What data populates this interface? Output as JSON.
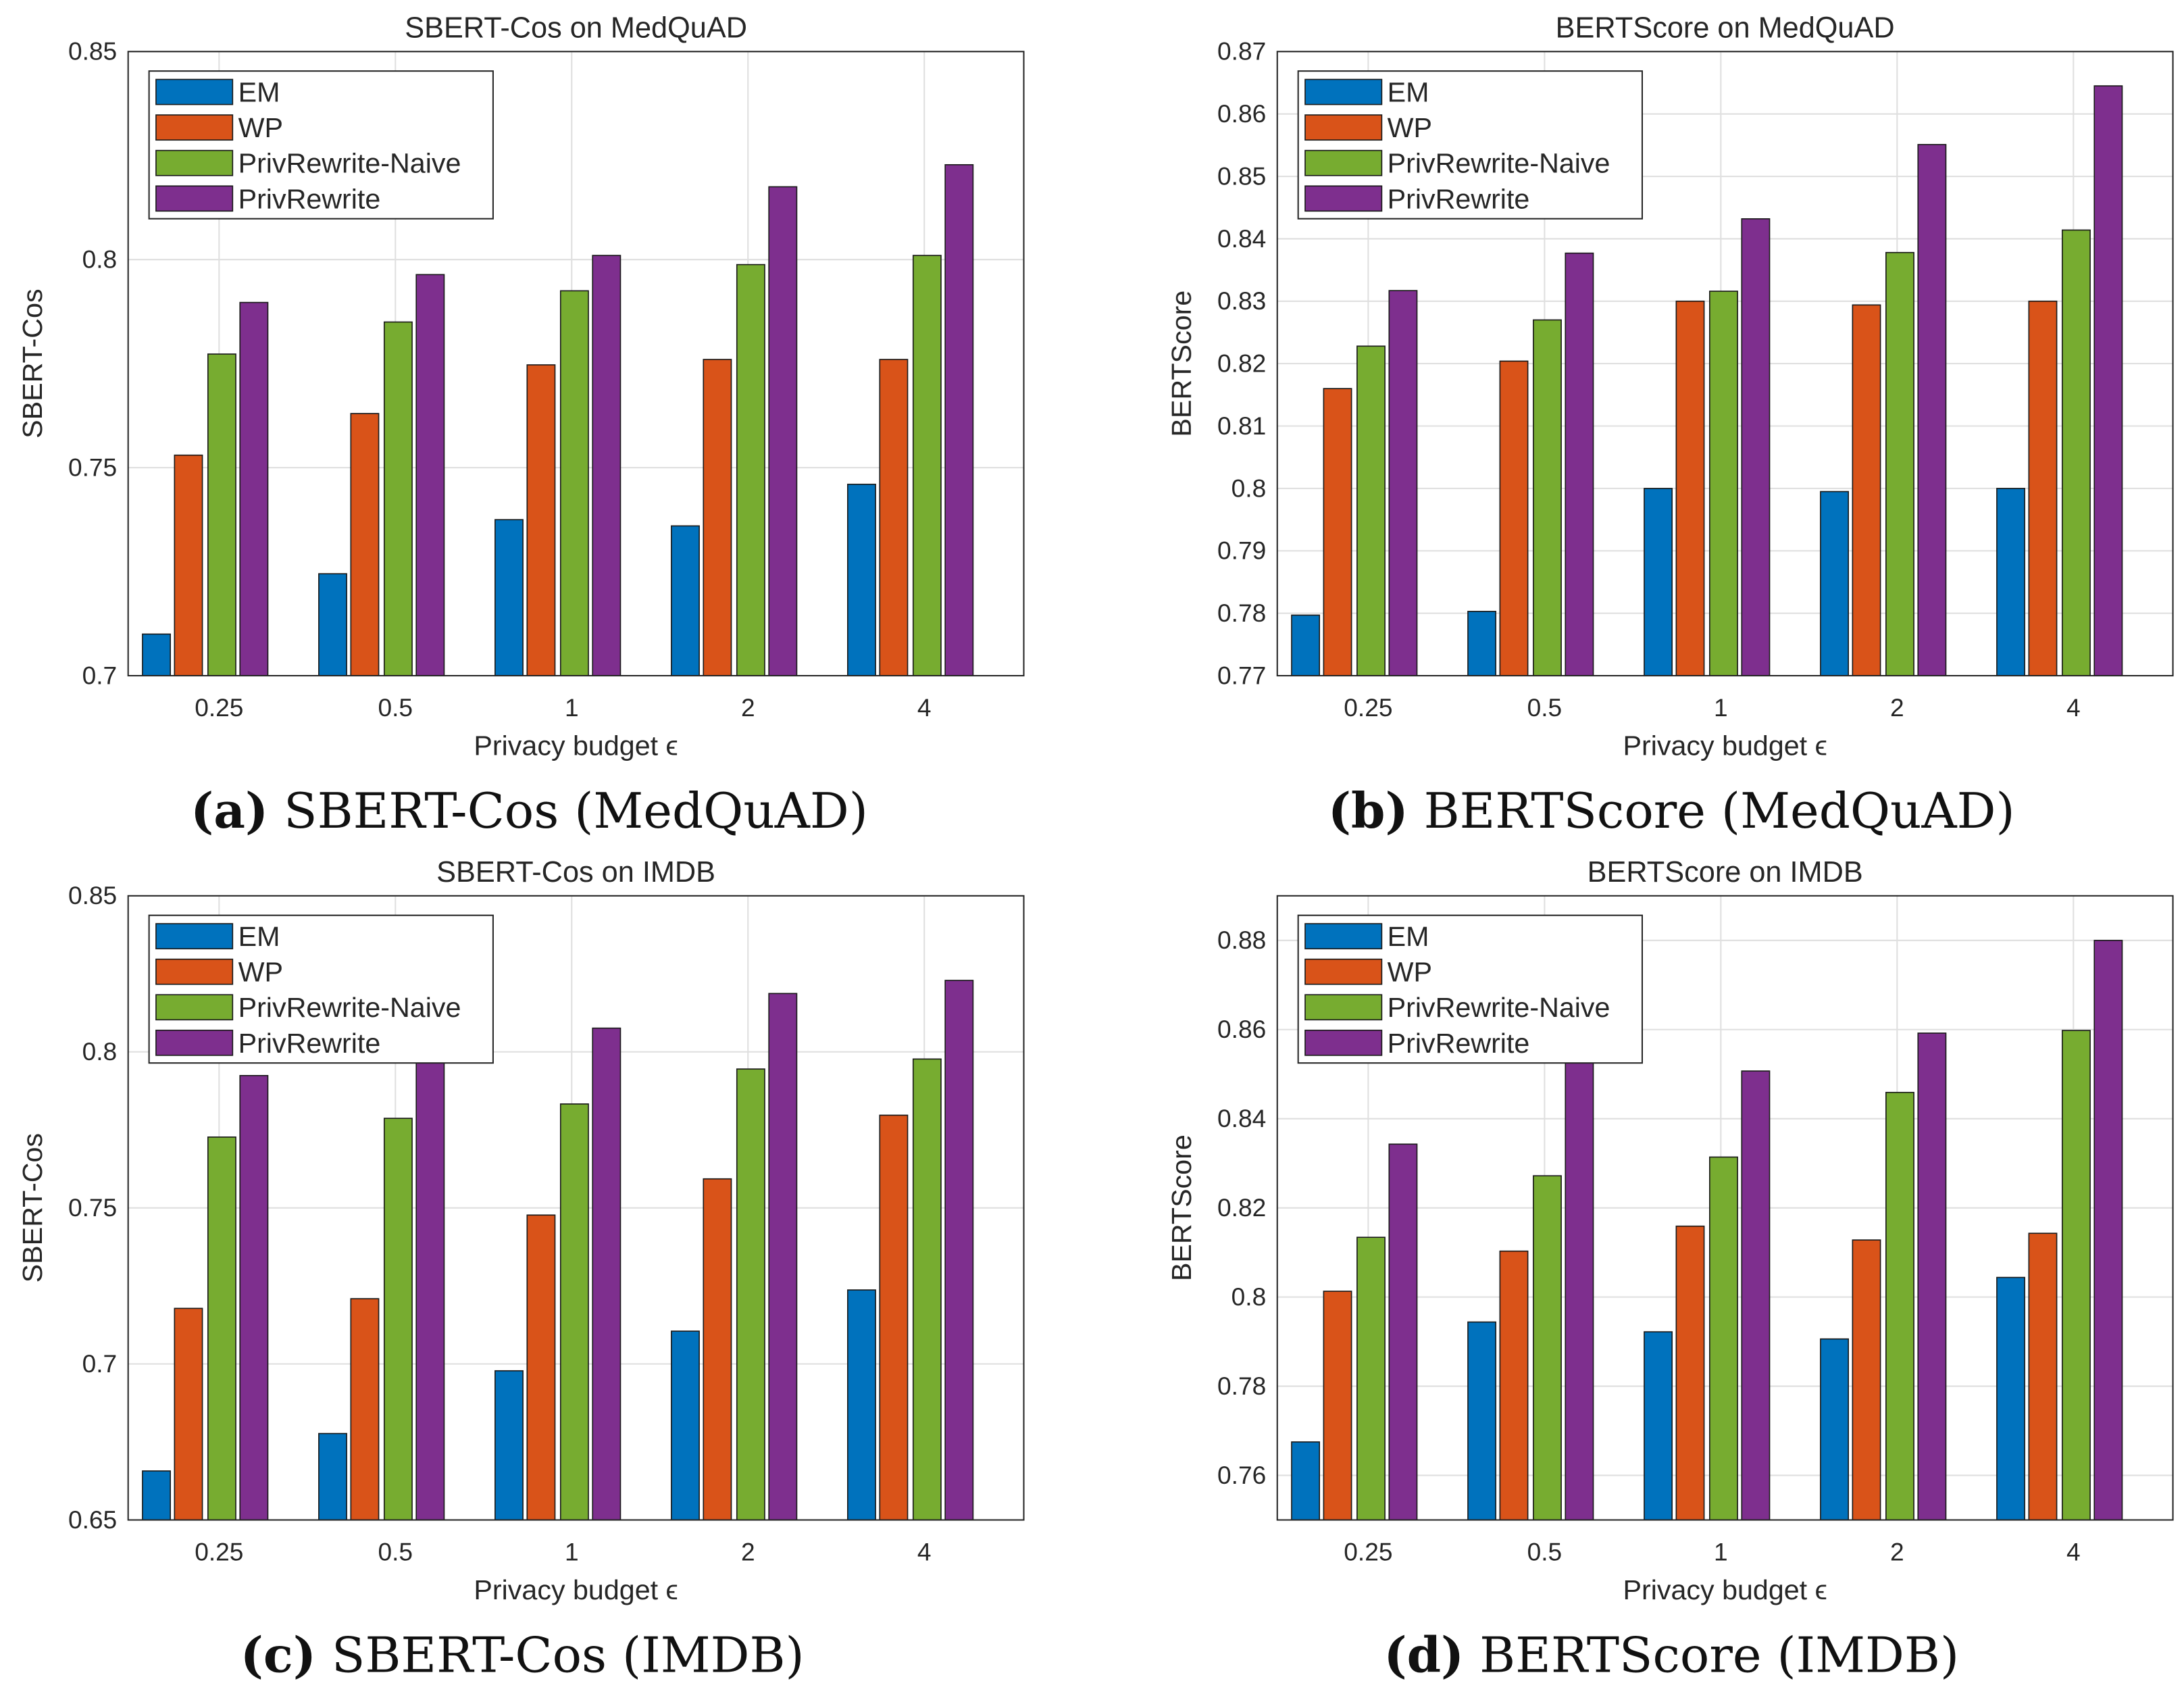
{
  "legend": [
    "EM",
    "WP",
    "PrivRewrite-Naive",
    "PrivRewrite"
  ],
  "colors": {
    "EM": "#0072BD",
    "WP": "#D95319",
    "PrivRewrite-Naive": "#77AC30",
    "PrivRewrite": "#7E2F8E"
  },
  "chart_data": [
    {
      "type": "bar",
      "title": "SBERT-Cos on MedQuAD",
      "xlabel": "Privacy budget ϵ",
      "ylabel": "SBERT-Cos",
      "caption_letter": "(a)",
      "caption_text": " SBERT-Cos (MedQuAD)",
      "categories": [
        "0.25",
        "0.5",
        "1",
        "2",
        "4"
      ],
      "ylim": [
        0.7,
        0.85
      ],
      "yticks": [
        "0.7",
        "0.75",
        "0.8",
        "0.85"
      ],
      "ytick_values": [
        0.7,
        0.75,
        0.8,
        0.85
      ],
      "grid": true,
      "legend_position": "top-left",
      "series": [
        {
          "name": "EM",
          "values": [
            0.71,
            0.7245,
            0.7375,
            0.736,
            0.746
          ]
        },
        {
          "name": "WP",
          "values": [
            0.753,
            0.763,
            0.7747,
            0.776,
            0.776
          ]
        },
        {
          "name": "PrivRewrite-Naive",
          "values": [
            0.7773,
            0.785,
            0.7925,
            0.7988,
            0.801
          ]
        },
        {
          "name": "PrivRewrite",
          "values": [
            0.7897,
            0.7964,
            0.801,
            0.8175,
            0.8228
          ]
        }
      ]
    },
    {
      "type": "bar",
      "title": "BERTScore on MedQuAD",
      "xlabel": "Privacy budget ϵ",
      "ylabel": "BERTScore",
      "caption_letter": "(b)",
      "caption_text": " BERTScore (MedQuAD)",
      "categories": [
        "0.25",
        "0.5",
        "1",
        "2",
        "4"
      ],
      "ylim": [
        0.77,
        0.87
      ],
      "yticks": [
        "0.77",
        "0.78",
        "0.79",
        "0.8",
        "0.81",
        "0.82",
        "0.83",
        "0.84",
        "0.85",
        "0.86",
        "0.87"
      ],
      "ytick_values": [
        0.77,
        0.78,
        0.79,
        0.8,
        0.81,
        0.82,
        0.83,
        0.84,
        0.85,
        0.86,
        0.87
      ],
      "grid": true,
      "legend_position": "top-left",
      "series": [
        {
          "name": "EM",
          "values": [
            0.7797,
            0.7803,
            0.8,
            0.7995,
            0.8
          ]
        },
        {
          "name": "WP",
          "values": [
            0.816,
            0.8204,
            0.83,
            0.8294,
            0.83
          ]
        },
        {
          "name": "PrivRewrite-Naive",
          "values": [
            0.8228,
            0.827,
            0.8316,
            0.8378,
            0.8414
          ]
        },
        {
          "name": "PrivRewrite",
          "values": [
            0.8317,
            0.8377,
            0.8432,
            0.8551,
            0.8645
          ]
        }
      ]
    },
    {
      "type": "bar",
      "title": "SBERT-Cos on IMDB",
      "xlabel": "Privacy budget ϵ",
      "ylabel": "SBERT-Cos",
      "caption_letter": "(c)",
      "caption_text": " SBERT-Cos (IMDB)",
      "categories": [
        "0.25",
        "0.5",
        "1",
        "2",
        "4"
      ],
      "ylim": [
        0.65,
        0.85
      ],
      "yticks": [
        "0.65",
        "0.7",
        "0.75",
        "0.8",
        "0.85"
      ],
      "ytick_values": [
        0.65,
        0.7,
        0.75,
        0.8,
        0.85
      ],
      "grid": true,
      "legend_position": "top-left",
      "series": [
        {
          "name": "EM",
          "values": [
            0.6657,
            0.6777,
            0.6978,
            0.7105,
            0.7237
          ]
        },
        {
          "name": "WP",
          "values": [
            0.7178,
            0.7209,
            0.7477,
            0.7593,
            0.7797
          ]
        },
        {
          "name": "PrivRewrite-Naive",
          "values": [
            0.7727,
            0.7787,
            0.7833,
            0.7945,
            0.7977
          ]
        },
        {
          "name": "PrivRewrite",
          "values": [
            0.7924,
            0.7998,
            0.8076,
            0.8187,
            0.8229
          ]
        }
      ]
    },
    {
      "type": "bar",
      "title": "BERTScore on IMDB",
      "xlabel": "Privacy budget ϵ",
      "ylabel": "BERTScore",
      "caption_letter": "(d)",
      "caption_text": " BERTScore (IMDB)",
      "categories": [
        "0.25",
        "0.5",
        "1",
        "2",
        "4"
      ],
      "ylim": [
        0.75,
        0.89
      ],
      "yticks": [
        "0.76",
        "0.78",
        "0.8",
        "0.82",
        "0.84",
        "0.86",
        "0.88"
      ],
      "ytick_values": [
        0.76,
        0.78,
        0.8,
        0.82,
        0.84,
        0.86,
        0.88
      ],
      "grid": true,
      "legend_position": "top-left",
      "series": [
        {
          "name": "EM",
          "values": [
            0.7675,
            0.7944,
            0.7922,
            0.7906,
            0.8044
          ]
        },
        {
          "name": "WP",
          "values": [
            0.8013,
            0.8103,
            0.8159,
            0.8128,
            0.8143
          ]
        },
        {
          "name": "PrivRewrite-Naive",
          "values": [
            0.8134,
            0.8272,
            0.8314,
            0.8459,
            0.8598
          ]
        },
        {
          "name": "PrivRewrite",
          "values": [
            0.8343,
            0.858,
            0.8507,
            0.8592,
            0.88
          ]
        }
      ]
    }
  ]
}
